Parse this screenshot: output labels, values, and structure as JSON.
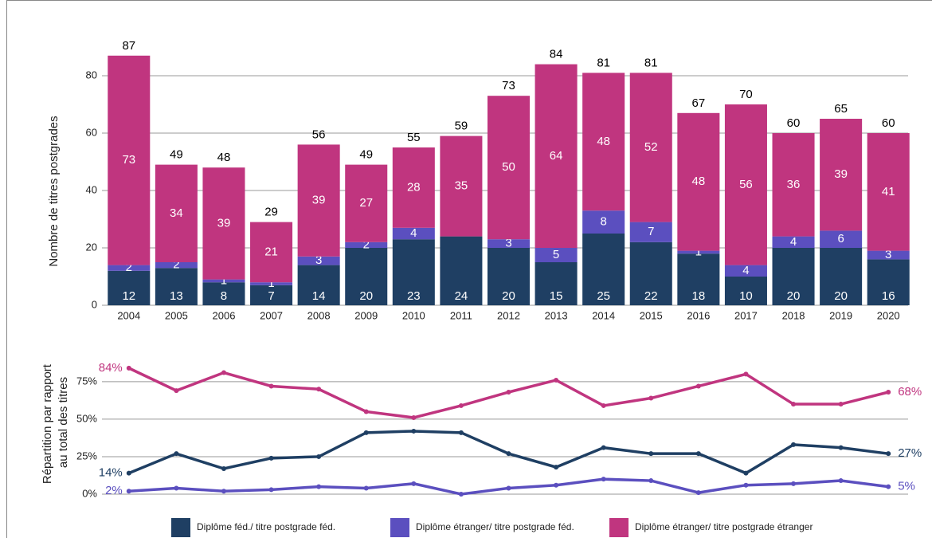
{
  "chart_data": [
    {
      "type": "bar",
      "y_label": "Nombre de titres postgrades",
      "categories": [
        "2004",
        "2005",
        "2006",
        "2007",
        "2008",
        "2009",
        "2010",
        "2011",
        "2012",
        "2013",
        "2014",
        "2015",
        "2016",
        "2017",
        "2018",
        "2019",
        "2020"
      ],
      "series": [
        {
          "name": "Diplôme féd./ titre postgrade féd.",
          "color": "#1f3f63",
          "values": [
            12,
            13,
            8,
            7,
            14,
            20,
            23,
            24,
            20,
            15,
            25,
            22,
            18,
            10,
            20,
            20,
            16
          ]
        },
        {
          "name": "Diplôme étranger/ titre postgrade féd.",
          "color": "#5b4fbf",
          "values": [
            2,
            2,
            1,
            1,
            3,
            2,
            4,
            0,
            3,
            5,
            8,
            7,
            1,
            4,
            4,
            6,
            3
          ]
        },
        {
          "name": "Diplôme étranger/ titre postgrade étranger",
          "color": "#c0357f",
          "values": [
            73,
            34,
            39,
            21,
            39,
            27,
            28,
            35,
            50,
            64,
            48,
            52,
            48,
            56,
            36,
            39,
            41
          ]
        }
      ],
      "totals": [
        87,
        49,
        48,
        29,
        56,
        49,
        55,
        59,
        73,
        84,
        81,
        81,
        67,
        70,
        60,
        65,
        60
      ],
      "ylim": [
        0,
        90
      ],
      "yticks": [
        0,
        20,
        40,
        60,
        80
      ],
      "grid": true
    },
    {
      "type": "line",
      "y_label": [
        "Répartition par rapport",
        "au total des titres"
      ],
      "series": [
        {
          "color": "#c0357f",
          "values": [
            84,
            69,
            81,
            72,
            70,
            55,
            51,
            59,
            68,
            76,
            59,
            64,
            72,
            80,
            60,
            60,
            68
          ],
          "value_labels": [
            "84%",
            null,
            null,
            null,
            null,
            null,
            null,
            null,
            null,
            null,
            null,
            null,
            null,
            null,
            null,
            null,
            "68%"
          ]
        },
        {
          "color": "#1f3f63",
          "values": [
            14,
            27,
            17,
            24,
            25,
            41,
            42,
            41,
            27,
            18,
            31,
            27,
            27,
            14,
            33,
            31,
            27
          ],
          "value_labels": [
            "14%",
            null,
            null,
            null,
            null,
            null,
            null,
            null,
            null,
            null,
            null,
            null,
            null,
            null,
            null,
            null,
            "27%"
          ]
        },
        {
          "color": "#5b4fbf",
          "values": [
            2,
            4,
            2,
            3,
            5,
            4,
            7,
            0,
            4,
            6,
            10,
            9,
            1,
            6,
            7,
            9,
            5
          ],
          "value_labels": [
            "2%",
            null,
            null,
            null,
            null,
            null,
            null,
            null,
            null,
            null,
            null,
            null,
            null,
            null,
            null,
            null,
            "5%"
          ]
        }
      ],
      "ylim": [
        0,
        85
      ],
      "yticks": [
        {
          "value": 0,
          "label": "0%"
        },
        {
          "value": 25,
          "label": "25%"
        },
        {
          "value": 50,
          "label": "50%"
        },
        {
          "value": 75,
          "label": "75%"
        }
      ],
      "grid": true
    }
  ]
}
